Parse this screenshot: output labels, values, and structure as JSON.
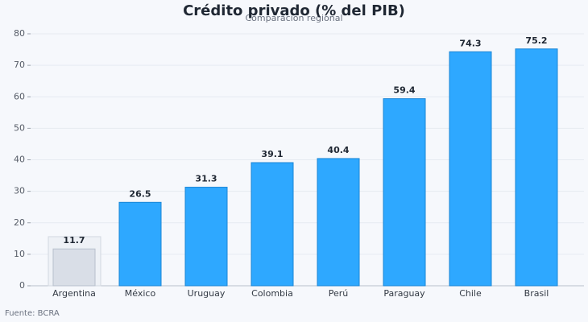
{
  "chart_data": {
    "type": "bar",
    "title": "Crédito privado (% del PIB)",
    "subtitle": "Comparación regional",
    "source": "Fuente: BCRA",
    "categories": [
      "Argentina",
      "México",
      "Uruguay",
      "Colombia",
      "Perú",
      "Paraguay",
      "Chile",
      "Brasil"
    ],
    "values": [
      11.7,
      26.5,
      31.3,
      39.1,
      40.4,
      59.4,
      74.3,
      75.2
    ],
    "colors": [
      "#d9dee7",
      "#2ea8ff",
      "#2ea8ff",
      "#2ea8ff",
      "#2ea8ff",
      "#2ea8ff",
      "#2ea8ff",
      "#2ea8ff"
    ],
    "ylim": [
      0,
      80
    ],
    "yticks": [
      0,
      10,
      20,
      30,
      40,
      50,
      60,
      70,
      80
    ],
    "grid": true
  }
}
